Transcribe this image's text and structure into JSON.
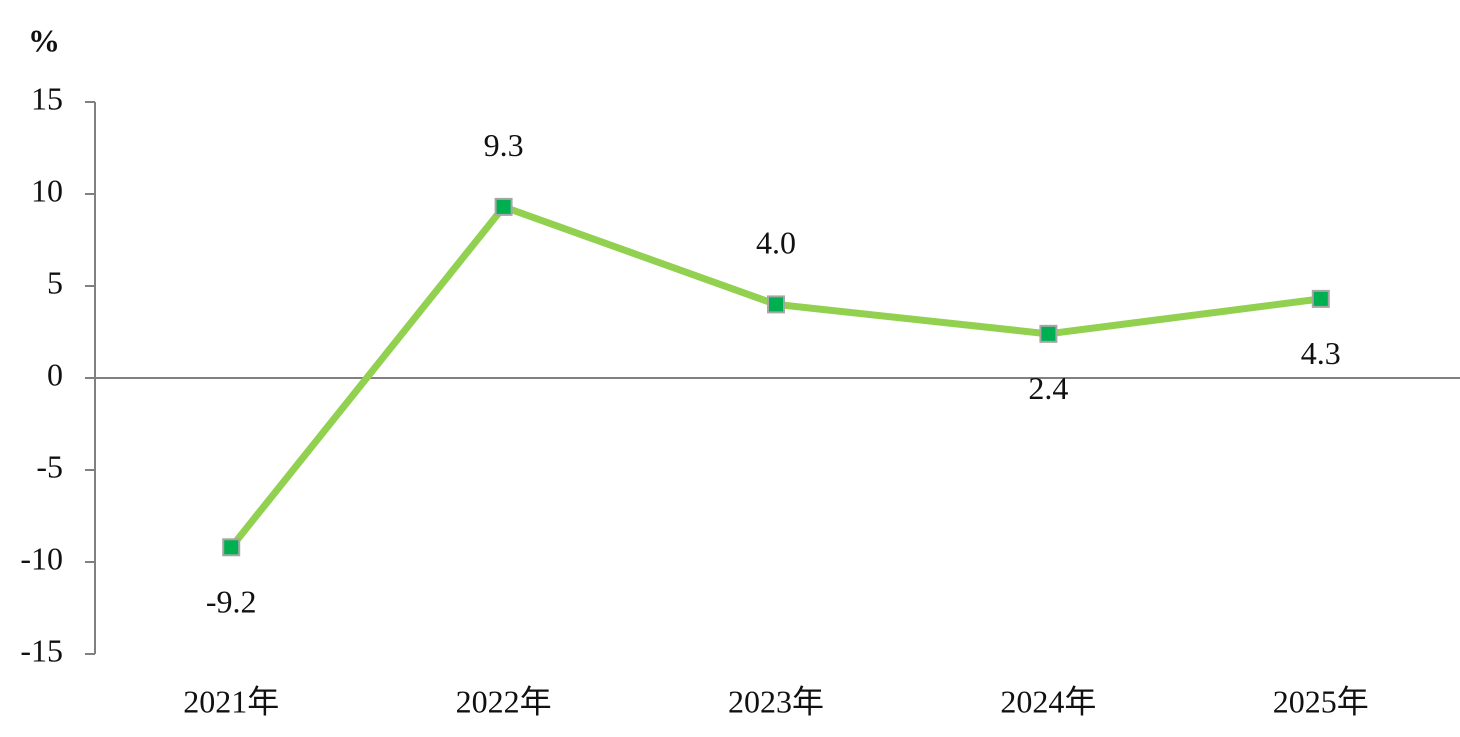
{
  "chart_data": {
    "type": "line",
    "y_label": "%",
    "categories": [
      "2021年",
      "2022年",
      "2023年",
      "2024年",
      "2025年"
    ],
    "series": [
      {
        "color": "#92d050",
        "marker_color": "#00b050",
        "values": [
          -9.2,
          9.3,
          4.0,
          2.4,
          4.3
        ],
        "value_labels": [
          "-9.2",
          "9.3",
          "4.0",
          "2.4",
          "4.3"
        ]
      }
    ],
    "ylim": [
      -15,
      15
    ],
    "yticks": [
      -15,
      -10,
      -5,
      0,
      5,
      10,
      15
    ],
    "grid": false
  }
}
